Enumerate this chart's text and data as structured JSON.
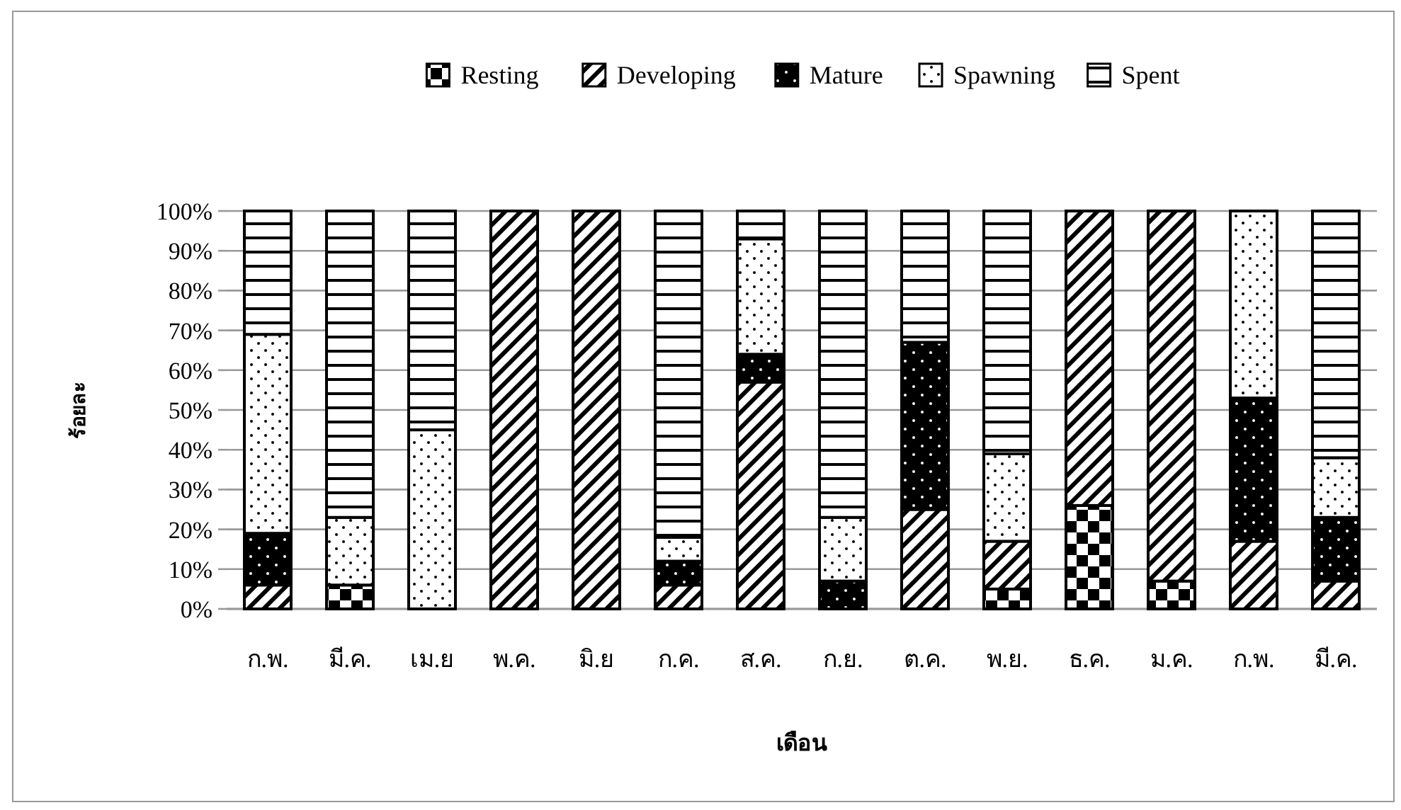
{
  "chart_data": {
    "type": "bar",
    "stacked": true,
    "xlabel": "เดือน",
    "ylabel": "ร้อยละ",
    "categories": [
      "ก.พ.",
      "มี.ค.",
      "เม.ย",
      "พ.ค.",
      "มิ.ย",
      "ก.ค.",
      "ส.ค.",
      "ก.ย.",
      "ต.ค.",
      "พ.ย.",
      "ธ.ค.",
      "ม.ค.",
      "ก.พ.",
      "มี.ค."
    ],
    "series": [
      {
        "name": "Resting",
        "color": "#000000",
        "values": [
          0,
          6,
          0,
          0,
          0,
          0,
          0,
          0,
          0,
          5,
          26,
          7,
          0,
          0
        ]
      },
      {
        "name": "Developing",
        "color": "#000000",
        "values": [
          6,
          0,
          0,
          100,
          100,
          6,
          57,
          0,
          25,
          12,
          74,
          93,
          17,
          7
        ]
      },
      {
        "name": "Mature",
        "color": "#000000",
        "values": [
          13,
          0,
          0,
          0,
          0,
          6,
          7,
          7,
          42,
          0,
          0,
          0,
          36,
          16
        ]
      },
      {
        "name": "Spawning",
        "color": "#000000",
        "values": [
          50,
          17,
          45,
          0,
          0,
          6,
          29,
          16,
          0,
          22,
          0,
          0,
          47,
          15
        ]
      },
      {
        "name": "Spent",
        "color": "#000000",
        "values": [
          31,
          77,
          55,
          0,
          0,
          82,
          7,
          77,
          33,
          61,
          0,
          0,
          0,
          62
        ]
      }
    ],
    "ylim": [
      0,
      100
    ],
    "yticks": [
      {
        "value": 0,
        "label": "0%"
      },
      {
        "value": 10,
        "label": "10%"
      },
      {
        "value": 20,
        "label": "20%"
      },
      {
        "value": 30,
        "label": "30%"
      },
      {
        "value": 40,
        "label": "40%"
      },
      {
        "value": 50,
        "label": "50%"
      },
      {
        "value": 60,
        "label": "60%"
      },
      {
        "value": 70,
        "label": "70%"
      },
      {
        "value": 80,
        "label": "80%"
      },
      {
        "value": 90,
        "label": "90%"
      },
      {
        "value": 100,
        "label": "100%"
      }
    ],
    "grid": "y",
    "legend": "top"
  }
}
